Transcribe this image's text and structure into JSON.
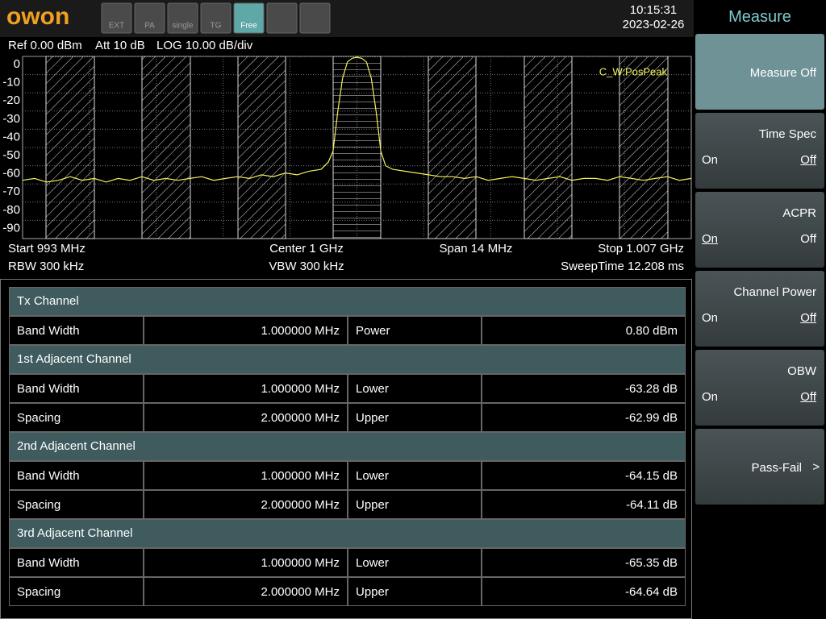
{
  "top_bar": {
    "logo": "OWON",
    "modes": [
      {
        "label": "EXT",
        "active": false
      },
      {
        "label": "PA",
        "active": false
      },
      {
        "label": "single",
        "active": false
      },
      {
        "label": "TG",
        "active": false
      },
      {
        "label": "Free",
        "active": true
      }
    ],
    "time": "10:15:31",
    "date": "2023-02-26"
  },
  "spectrum": {
    "settings": [
      "Ref 0.00 dBm",
      "Att 10 dB",
      "LOG 10.00 dB/div"
    ],
    "trace_label": "C_W:PosPeak",
    "color": "#f2f25a",
    "xlim": [
      993,
      1007
    ],
    "ylim": [
      -100,
      0
    ],
    "yticks": [
      0,
      -10,
      -20,
      -30,
      -40,
      -50,
      -60,
      -70,
      -80,
      -90
    ],
    "x": [
      993,
      993.25,
      993.5,
      993.75,
      994,
      994.25,
      994.5,
      994.75,
      995,
      995.25,
      995.5,
      995.75,
      996,
      996.25,
      996.5,
      996.75,
      997,
      997.25,
      997.5,
      997.75,
      998,
      998.25,
      998.5,
      998.75,
      999,
      999.25,
      999.4,
      999.5,
      999.6,
      999.7,
      999.8,
      999.9,
      1000,
      1000.1,
      1000.2,
      1000.3,
      1000.4,
      1000.5,
      1000.6,
      1000.75,
      1001,
      1001.25,
      1001.5,
      1001.75,
      1002,
      1002.25,
      1002.5,
      1002.75,
      1003,
      1003.25,
      1003.5,
      1003.75,
      1004,
      1004.25,
      1004.5,
      1004.75,
      1005,
      1005.25,
      1005.5,
      1005.75,
      1006,
      1006.25,
      1006.5,
      1006.75,
      1007
    ],
    "trace": [
      -68,
      -67,
      -69,
      -68,
      -66,
      -68,
      -67,
      -69,
      -67,
      -68,
      -66,
      -68,
      -67,
      -68,
      -67,
      -66,
      -68,
      -67,
      -66,
      -67,
      -65,
      -66,
      -64,
      -65,
      -63,
      -62,
      -58,
      -52,
      -30,
      -12,
      -3,
      -1,
      -0.5,
      -1,
      -3,
      -12,
      -30,
      -52,
      -60,
      -62,
      -63,
      -64,
      -65,
      -66,
      -66,
      -67,
      -66,
      -68,
      -67,
      -66,
      -67,
      -68,
      -67,
      -66,
      -68,
      -67,
      -67,
      -68,
      -66,
      -67,
      -68,
      -67,
      -66,
      -68,
      -67
    ],
    "footer": [
      [
        "Start 993 MHz",
        "Center 1 GHz",
        "Span 14 MHz",
        "Stop 1.007 GHz"
      ],
      [
        "RBW 300 kHz",
        "VBW 300 kHz",
        "SweepTime 12.208 ms"
      ]
    ]
  },
  "table": {
    "sections": [
      {
        "title": "Tx Channel",
        "rows": [
          [
            "Band Width",
            "1.000000 MHz",
            "Power",
            "0.80 dBm"
          ]
        ]
      },
      {
        "title": "1st Adjacent Channel",
        "rows": [
          [
            "Band Width",
            "1.000000 MHz",
            "Lower",
            "-63.28 dB"
          ],
          [
            "Spacing",
            "2.000000 MHz",
            "Upper",
            "-62.99 dB"
          ]
        ]
      },
      {
        "title": "2nd Adjacent Channel",
        "rows": [
          [
            "Band Width",
            "1.000000 MHz",
            "Lower",
            "-64.15 dB"
          ],
          [
            "Spacing",
            "2.000000 MHz",
            "Upper",
            "-64.11 dB"
          ]
        ]
      },
      {
        "title": "3rd Adjacent Channel",
        "rows": [
          [
            "Band Width",
            "1.000000 MHz",
            "Lower",
            "-65.35 dB"
          ],
          [
            "Spacing",
            "2.000000 MHz",
            "Upper",
            "-64.64 dB"
          ]
        ]
      }
    ]
  },
  "menu": {
    "title": "Measure",
    "items": [
      {
        "label": "Measure Off",
        "active": true
      },
      {
        "label": "Time Spec",
        "options": [
          "On",
          "Off"
        ],
        "selected": 1
      },
      {
        "label": "ACPR",
        "options": [
          "On",
          "Off"
        ],
        "selected": 0
      },
      {
        "label": "Channel Power",
        "options": [
          "On",
          "Off"
        ],
        "selected": 1
      },
      {
        "label": "OBW",
        "options": [
          "On",
          "Off"
        ],
        "selected": 1
      },
      {
        "label": "Pass-Fail",
        "arrow": ">"
      }
    ]
  }
}
